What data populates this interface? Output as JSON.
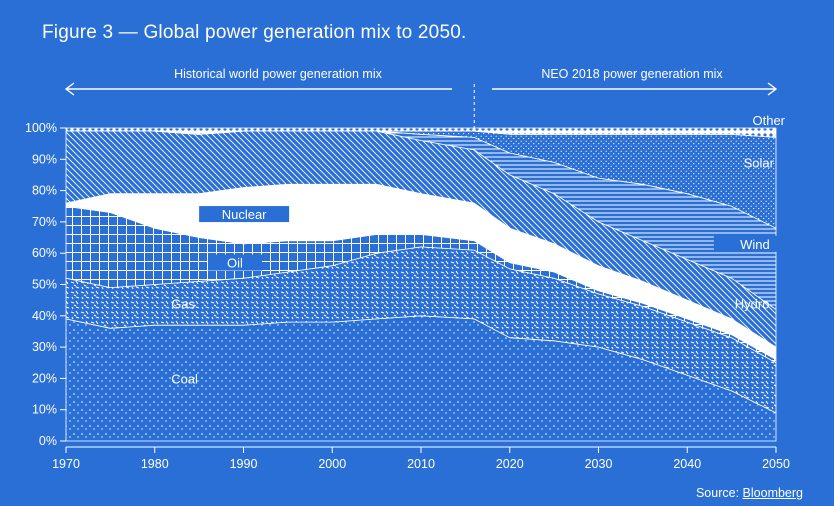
{
  "title": "Figure 3 — Global power generation mix to 2050.",
  "source": {
    "label": "Source:",
    "link": "Bloomberg"
  },
  "chart_data": {
    "type": "area",
    "stacked": true,
    "title": "Figure 3 — Global power generation mix to 2050.",
    "xlim": [
      1970,
      2050
    ],
    "ylim": [
      0,
      100
    ],
    "x_ticks": [
      "1970",
      "1980",
      "1990",
      "2000",
      "2010",
      "2020",
      "2030",
      "2040",
      "2050"
    ],
    "y_ticks": [
      "0%",
      "10%",
      "20%",
      "30%",
      "40%",
      "50%",
      "60%",
      "70%",
      "80%",
      "90%",
      "100%"
    ],
    "segments": {
      "historical": "Historical world power generation mix",
      "forecast": "NEO 2018 power generation mix"
    },
    "forecast_start": 2016,
    "x": [
      1970,
      1975,
      1980,
      1985,
      1990,
      1995,
      2000,
      2005,
      2010,
      2016,
      2020,
      2025,
      2030,
      2035,
      2040,
      2045,
      2050
    ],
    "series": [
      {
        "name": "Coal",
        "values": [
          39,
          36,
          37,
          37,
          37,
          38,
          38,
          39,
          40,
          39,
          33,
          32,
          30,
          26,
          21,
          16,
          9
        ]
      },
      {
        "name": "Gas",
        "values": [
          13,
          13,
          13,
          14,
          15,
          16,
          18,
          21,
          22,
          22,
          22,
          20,
          17,
          17,
          17,
          17,
          16
        ]
      },
      {
        "name": "Oil",
        "values": [
          23,
          24,
          18,
          14,
          11,
          10,
          8,
          6,
          4,
          3,
          2,
          2,
          1,
          1,
          1,
          1,
          1
        ]
      },
      {
        "name": "Nuclear",
        "values": [
          1,
          6,
          11,
          14,
          18,
          18,
          18,
          16,
          13,
          12,
          11,
          9,
          8,
          7,
          6,
          5,
          4
        ]
      },
      {
        "name": "Hydro",
        "values": [
          23,
          20,
          20,
          19,
          18,
          17,
          17,
          17,
          17,
          17,
          17,
          16,
          14,
          13,
          13,
          13,
          12
        ]
      },
      {
        "name": "Wind",
        "values": [
          0,
          0,
          0,
          0,
          0,
          0,
          0,
          0,
          2,
          4,
          7,
          10,
          14,
          18,
          21,
          23,
          26
        ]
      },
      {
        "name": "Solar",
        "values": [
          0,
          0,
          0,
          0,
          0,
          0,
          0,
          0,
          1,
          2,
          6,
          9,
          14,
          16,
          19,
          23,
          29
        ]
      },
      {
        "name": "Other",
        "values": [
          1,
          1,
          1,
          2,
          1,
          1,
          1,
          1,
          1,
          1,
          2,
          2,
          2,
          2,
          2,
          2,
          3
        ]
      }
    ],
    "labels": {
      "Coal": "Coal",
      "Gas": "Gas",
      "Oil": "Oil",
      "Nuclear": "Nuclear",
      "Hydro": "Hydro",
      "Wind": "Wind",
      "Solar": "Solar",
      "Other": "Other"
    }
  }
}
